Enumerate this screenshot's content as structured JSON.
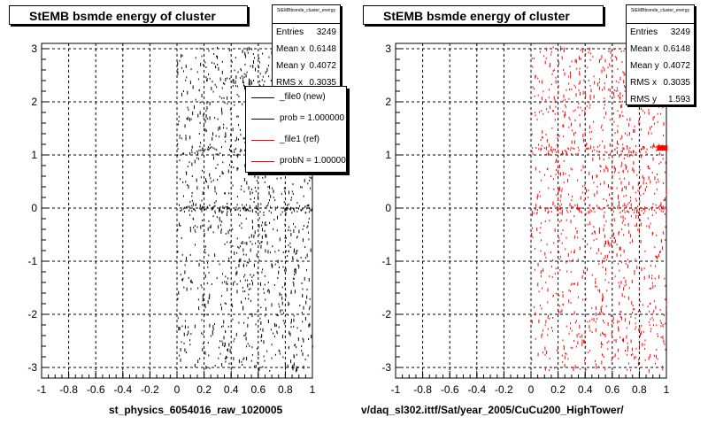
{
  "colors": {
    "new": "#000000",
    "ref": "#ff0000",
    "frame": "#000000"
  },
  "left_panel": {
    "title": "StEMB bsmde energy of cluster",
    "stats": {
      "header": "StEMBbsmde_cluster_energy",
      "rows": [
        {
          "label": "Entries",
          "value": "3249"
        },
        {
          "label": "Mean x",
          "value": "0.6148"
        },
        {
          "label": "Mean y",
          "value": "0.4072"
        },
        {
          "label": "RMS x",
          "value": "0.3035"
        }
      ]
    },
    "legend": [
      {
        "label": "_file0 (new)",
        "color": "#000000"
      },
      {
        "label": "prob = 1.000000",
        "color": "#000000"
      },
      {
        "label": "_file1 (ref)",
        "color": "#ff0000"
      },
      {
        "label": "probN = 1.000000",
        "color": "#ff0000"
      }
    ],
    "xlabel": "st_physics_6054016_raw_1020005"
  },
  "right_panel": {
    "title": "StEMB bsmde energy of cluster",
    "stats": {
      "header": "StEMBbsmde_cluster_energy",
      "rows": [
        {
          "label": "Entries",
          "value": "3249"
        },
        {
          "label": "Mean x",
          "value": "0.6148"
        },
        {
          "label": "Mean y",
          "value": "0.4072"
        },
        {
          "label": "RMS x",
          "value": "0.3035"
        },
        {
          "label": "RMS y",
          "value": "1.593"
        }
      ]
    },
    "xlabel": "v/daq_sl302.ittf/Sat/year_2005/CuCu200_HighTower/"
  },
  "chart_data": [
    {
      "type": "scatter",
      "title": "StEMB bsmde energy of cluster",
      "series": [
        {
          "name": "_file0 (new)",
          "color": "#000000"
        }
      ],
      "xlim": [
        -1,
        1
      ],
      "ylim": [
        -3.2,
        3.1
      ],
      "grid": true,
      "xticks": [
        "-1",
        "-0.8",
        "-0.6",
        "-0.4",
        "-0.2",
        "0",
        "0.2",
        "0.4",
        "0.6",
        "0.8",
        "1"
      ],
      "yticks": [
        "-3",
        "-2",
        "-1",
        "0",
        "1",
        "2",
        "3"
      ],
      "entries": 3249,
      "mean_x": 0.6148,
      "mean_y": 0.4072,
      "rms_x": 0.3035
    },
    {
      "type": "scatter",
      "title": "StEMB bsmde energy of cluster",
      "series": [
        {
          "name": "_file1 (ref)",
          "color": "#ff0000"
        }
      ],
      "xlim": [
        -1,
        1
      ],
      "ylim": [
        -3.2,
        3.1
      ],
      "grid": true,
      "xticks": [
        "-1",
        "-0.8",
        "-0.6",
        "-0.4",
        "-0.2",
        "0",
        "0.2",
        "0.4",
        "0.6",
        "0.8",
        "1"
      ],
      "yticks": [
        "-3",
        "-2",
        "-1",
        "0",
        "1",
        "2",
        "3"
      ],
      "entries": 3249,
      "mean_x": 0.6148,
      "mean_y": 0.4072,
      "rms_x": 0.3035,
      "rms_y": 1.593
    }
  ]
}
